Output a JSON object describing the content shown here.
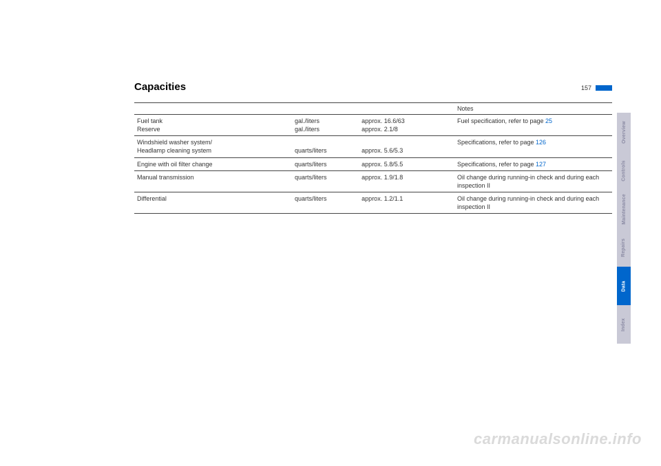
{
  "header": {
    "title": "Capacities",
    "page_number": "157"
  },
  "table": {
    "header": {
      "item": "",
      "unit": "",
      "value": "",
      "notes": "Notes"
    },
    "rows": [
      {
        "item": "Fuel tank\nReserve",
        "unit": "gal./liters\ngal./liters",
        "value": "approx. 16.6/63\napprox. 2.1/8",
        "notes": "Fuel specification, refer to page ",
        "page_ref": "25"
      },
      {
        "item": "Windshield washer system/\nHeadlamp cleaning system",
        "unit": "\nquarts/liters",
        "value": "\napprox. 5.6/5.3",
        "notes": "Specifications, refer to page ",
        "page_ref": "126"
      },
      {
        "item": "Engine with oil filter change",
        "unit": "quarts/liters",
        "value": "approx. 5.8/5.5",
        "notes": "Specifications, refer to page ",
        "page_ref": "127"
      },
      {
        "item": "Manual transmission",
        "unit": "quarts/liters",
        "value": "approx. 1.9/1.8",
        "notes": "Oil change during running-in check and during each inspection II",
        "page_ref": ""
      },
      {
        "item": "Differential",
        "unit": "quarts/liters",
        "value": "approx. 1.2/1.1",
        "notes": "Oil change during running-in check and during each inspection II",
        "page_ref": ""
      }
    ]
  },
  "tabs": [
    {
      "label": "Overview",
      "active": false
    },
    {
      "label": "Controls",
      "active": false
    },
    {
      "label": "Maintenance",
      "active": false
    },
    {
      "label": "Repairs",
      "active": false
    },
    {
      "label": "Data",
      "active": true
    },
    {
      "label": "Index",
      "active": false
    }
  ],
  "watermark": "carmanualsonline.info",
  "colors": {
    "accent": "#0066cc",
    "tab_inactive_bg": "#c9c9d6",
    "tab_inactive_fg": "#8a8aa3",
    "watermark": "#dadada"
  }
}
